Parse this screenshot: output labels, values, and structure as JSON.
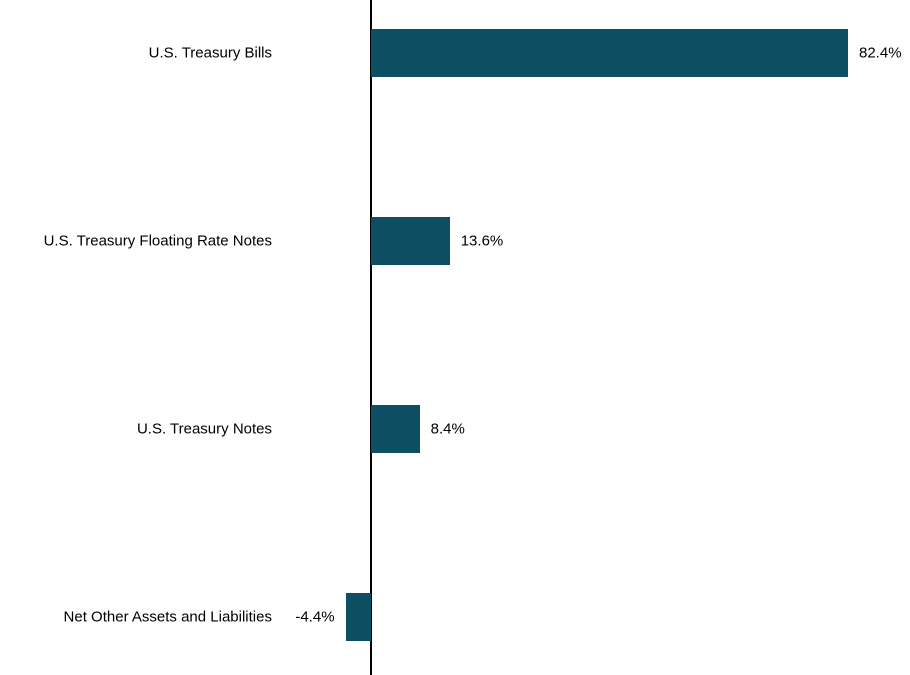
{
  "chart_data": {
    "type": "bar",
    "orientation": "horizontal",
    "title": "",
    "xlabel": "",
    "ylabel": "",
    "categories": [
      "U.S. Treasury Bills",
      "U.S. Treasury Floating Rate Notes",
      "U.S. Treasury Notes",
      "Net Other Assets and Liabilities"
    ],
    "values": [
      82.4,
      13.6,
      8.4,
      -4.4
    ],
    "value_labels": [
      "82.4%",
      "13.6%",
      "8.4%",
      "-4.4%"
    ],
    "bar_color": "#0d4e63",
    "axis_color": "#000000",
    "background_color": "#ffffff",
    "xlim": [
      -10,
      95
    ],
    "grid": false,
    "legend": false,
    "baseline_at_zero": true
  }
}
